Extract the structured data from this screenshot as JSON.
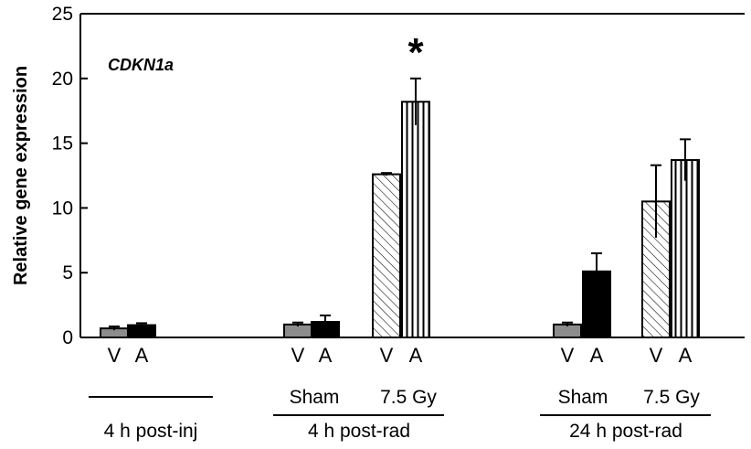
{
  "chart_data": {
    "type": "bar",
    "title": "",
    "annotation_label": "CDKN1a",
    "ylabel": "Relative gene expression",
    "xlabel": "",
    "ylim": [
      0,
      25
    ],
    "yticks": [
      0,
      5,
      10,
      15,
      20,
      25
    ],
    "grid": false,
    "bars": [
      {
        "group": "4 h post-inj",
        "condition": "",
        "letter": "V",
        "pattern": "gray",
        "value": 0.7,
        "error": 0.15
      },
      {
        "group": "4 h post-inj",
        "condition": "",
        "letter": "A",
        "pattern": "black",
        "value": 0.95,
        "error": 0.15
      },
      {
        "group": "4 h post-rad",
        "condition": "Sham",
        "letter": "V",
        "pattern": "gray",
        "value": 1.0,
        "error": 0.15
      },
      {
        "group": "4 h post-rad",
        "condition": "Sham",
        "letter": "A",
        "pattern": "black",
        "value": 1.2,
        "error": 0.5
      },
      {
        "group": "4 h post-rad",
        "condition": "7.5 Gy",
        "letter": "V",
        "pattern": "diagonal",
        "value": 12.6,
        "error": 0.1
      },
      {
        "group": "4 h post-rad",
        "condition": "7.5 Gy",
        "letter": "A",
        "pattern": "vertical",
        "value": 18.2,
        "error": 1.8
      },
      {
        "group": "24 h post-rad",
        "condition": "Sham",
        "letter": "V",
        "pattern": "gray",
        "value": 1.0,
        "error": 0.15
      },
      {
        "group": "24 h post-rad",
        "condition": "Sham",
        "letter": "A",
        "pattern": "black",
        "value": 5.1,
        "error": 1.4
      },
      {
        "group": "24 h post-rad",
        "condition": "7.5 Gy",
        "letter": "V",
        "pattern": "diagonal",
        "value": 10.5,
        "error": 2.8
      },
      {
        "group": "24 h post-rad",
        "condition": "7.5 Gy",
        "letter": "A",
        "pattern": "vertical",
        "value": 13.7,
        "error": 1.6
      }
    ],
    "significance": [
      {
        "bar_index": 5,
        "symbol": "*"
      }
    ],
    "conditions": [
      {
        "label": "Sham",
        "group": "4 h post-rad"
      },
      {
        "label": "7.5 Gy",
        "group": "4 h post-rad"
      },
      {
        "label": "Sham",
        "group": "24 h post-rad"
      },
      {
        "label": "7.5 Gy",
        "group": "24 h post-rad"
      }
    ],
    "groups": [
      "4 h post-inj",
      "4 h post-rad",
      "24 h post-rad"
    ],
    "colors": {
      "gray": "#8c8c8c",
      "black": "#000000",
      "hatch_bg": "#ffffff",
      "hatch_line": "#000000"
    }
  }
}
